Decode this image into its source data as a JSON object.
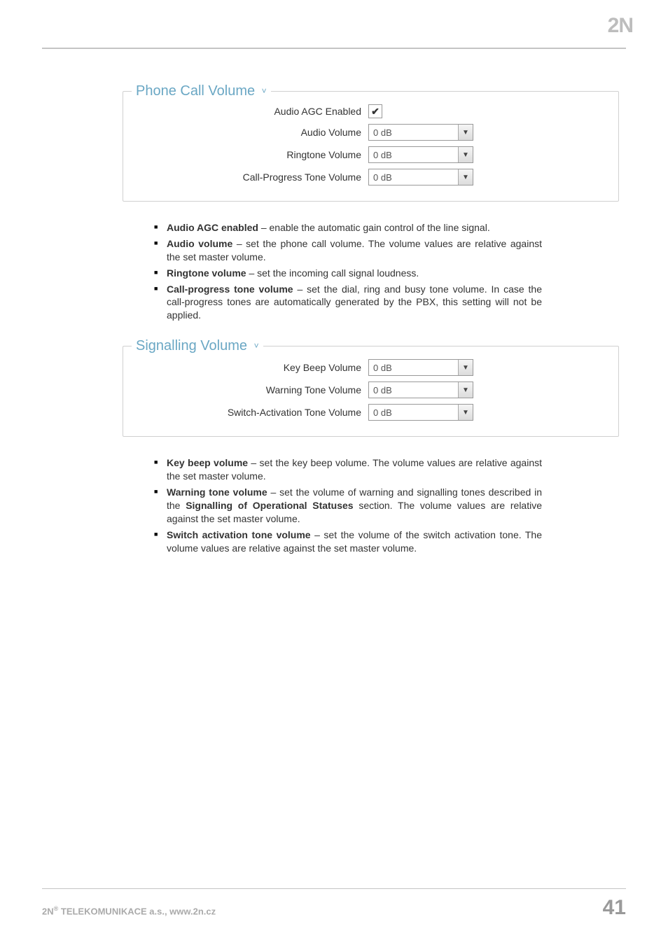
{
  "logo": "2N",
  "panel1": {
    "title": "Phone Call Volume",
    "rows": {
      "agc": {
        "label": "Audio AGC Enabled",
        "checked": true
      },
      "audio_volume": {
        "label": "Audio Volume",
        "value": "0 dB"
      },
      "ringtone_volume": {
        "label": "Ringtone Volume",
        "value": "0 dB"
      },
      "call_progress": {
        "label": "Call-Progress Tone Volume",
        "value": "0 dB"
      }
    }
  },
  "desc1": {
    "i0": {
      "b": "Audio AGC enabled",
      "t": " – enable the automatic gain control of the line signal."
    },
    "i1": {
      "b": "Audio volume",
      "t": " – set the phone call volume. The volume values are relative against the set master volume."
    },
    "i2": {
      "b": "Ringtone volume",
      "t": " – set the incoming call signal loudness."
    },
    "i3": {
      "b": "Call-progress tone volume",
      "t": " – set the dial, ring and busy tone volume. In case the call-progress tones are automatically generated by the PBX, this setting will not be applied."
    }
  },
  "panel2": {
    "title": "Signalling Volume",
    "rows": {
      "key_beep": {
        "label": "Key Beep Volume",
        "value": "0 dB"
      },
      "warning": {
        "label": "Warning Tone Volume",
        "value": "0 dB"
      },
      "switch_act": {
        "label": "Switch-Activation Tone Volume",
        "value": "0 dB"
      }
    }
  },
  "desc2": {
    "i0": {
      "b": "Key beep volume",
      "t": " – set the key beep volume. The volume values are relative against the set master volume."
    },
    "i1": {
      "b": "Warning tone volume",
      "t1": " – set the volume of warning and signalling tones described in the ",
      "b2": "Signalling of Operational Statuses",
      "t2": " section. The volume values are relative against the set master volume."
    },
    "i2": {
      "b": "Switch activation tone volume",
      "t": " – set the volume of the switch activation tone. The volume values are relative against the set master volume."
    }
  },
  "footer": {
    "company_prefix": "2N",
    "reg": "®",
    "company_rest": " TELEKOMUNIKACE a.s., www.2n.cz",
    "page": "41"
  },
  "colors": {
    "accent": "#6aa7c4",
    "border": "#d0d0d0",
    "footer_gray": "#aaaaaa",
    "pagenum_gray": "#9a9a9a"
  }
}
